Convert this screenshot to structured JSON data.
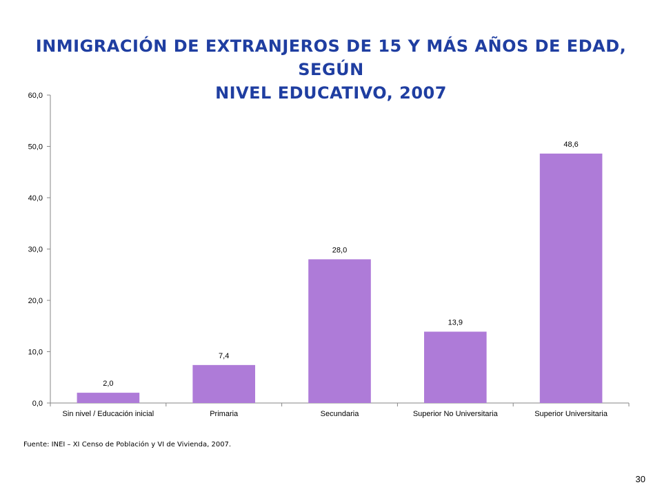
{
  "title": {
    "line1": "INMIGRACIÓN DE EXTRANJEROS DE 15 Y MÁS AÑOS DE EDAD, SEGÚN",
    "line2": "NIVEL EDUCATIVO, 2007"
  },
  "source": "Fuente: INEI – XI Censo de Población y VI de Vivienda, 2007.",
  "page_number": "30",
  "chart_data": {
    "type": "bar",
    "title": "",
    "xlabel": "",
    "ylabel": "",
    "categories": [
      "Sin nivel / Educación inicial",
      "Primaria",
      "Secundaria",
      "Superior No Universitaria",
      "Superior Universitaria"
    ],
    "values": [
      2.0,
      7.4,
      28.0,
      13.9,
      48.6
    ],
    "value_labels": [
      "2,0",
      "7,4",
      "28,0",
      "13,9",
      "48,6"
    ],
    "ylim": [
      0,
      60
    ],
    "yticks": [
      0,
      10,
      20,
      30,
      40,
      50,
      60
    ],
    "ytick_labels": [
      "0,0",
      "10,0",
      "20,0",
      "30,0",
      "40,0",
      "50,0",
      "60,0"
    ],
    "grid": false,
    "legend": "none",
    "bar_color": "#ae7bd8"
  }
}
